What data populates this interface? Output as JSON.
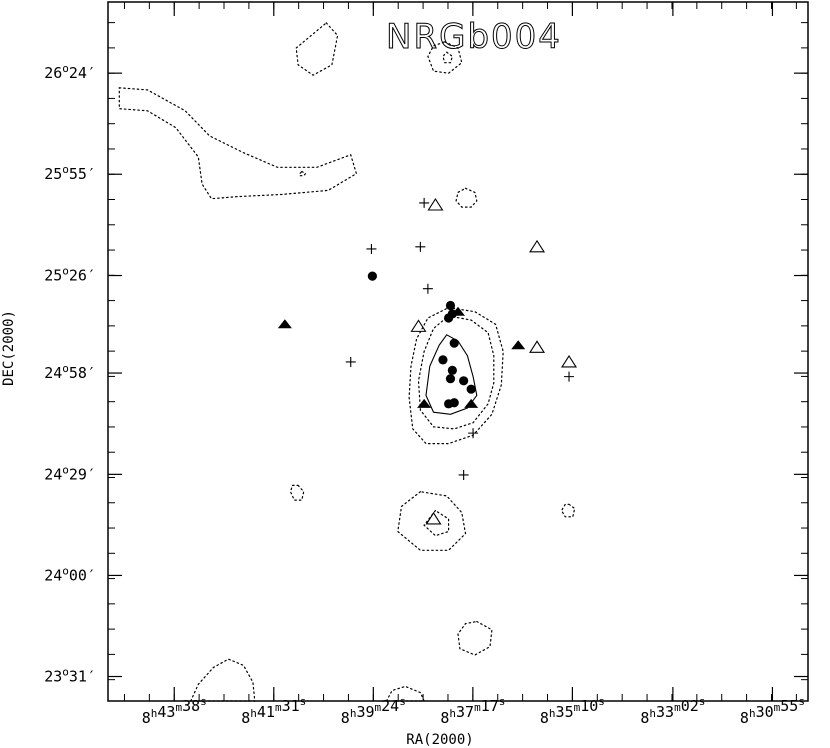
{
  "chart_data": {
    "type": "scatter",
    "title": "NRGb004",
    "xlabel": "RA(2000)",
    "ylabel": "DEC(2000)",
    "x_tick_labels": [
      {
        "hr": "8",
        "min": "43",
        "sec": "38"
      },
      {
        "hr": "8",
        "min": "41",
        "sec": "31"
      },
      {
        "hr": "8",
        "min": "39",
        "sec": "24"
      },
      {
        "hr": "8",
        "min": "37",
        "sec": "17"
      },
      {
        "hr": "8",
        "min": "35",
        "sec": "10"
      },
      {
        "hr": "8",
        "min": "33",
        "sec": "02"
      },
      {
        "hr": "8",
        "min": "30",
        "sec": "55"
      }
    ],
    "x_ticks_deg": [
      130.908,
      130.379,
      129.85,
      129.321,
      128.792,
      128.258,
      127.729
    ],
    "y_tick_labels": [
      {
        "deg": "26",
        "min": "24"
      },
      {
        "deg": "25",
        "min": "55"
      },
      {
        "deg": "25",
        "min": "26"
      },
      {
        "deg": "24",
        "min": "58"
      },
      {
        "deg": "24",
        "min": "29"
      },
      {
        "deg": "24",
        "min": "00"
      },
      {
        "deg": "23",
        "min": "31"
      }
    ],
    "y_ticks_deg": [
      26.4,
      25.917,
      25.433,
      24.967,
      24.483,
      24.0,
      23.517
    ],
    "xlim": [
      131.26,
      127.54
    ],
    "ylim": [
      23.4,
      26.74
    ],
    "grid": false,
    "series": [
      {
        "marker": "filled-circle",
        "color": "#000000",
        "points": [
          [
            129.855,
            25.43
          ],
          [
            129.44,
            25.29
          ],
          [
            129.43,
            25.25
          ],
          [
            129.45,
            25.23
          ],
          [
            129.42,
            25.11
          ],
          [
            129.48,
            25.03
          ],
          [
            129.43,
            24.98
          ],
          [
            129.44,
            24.94
          ],
          [
            129.37,
            24.93
          ],
          [
            129.33,
            24.89
          ],
          [
            129.42,
            24.825
          ],
          [
            129.45,
            24.82
          ]
        ]
      },
      {
        "marker": "filled-triangle",
        "color": "#000000",
        "points": [
          [
            130.32,
            25.2
          ],
          [
            129.58,
            24.82
          ],
          [
            129.33,
            24.82
          ],
          [
            129.08,
            25.1
          ],
          [
            129.4,
            25.26
          ]
        ]
      },
      {
        "marker": "open-triangle",
        "color": "#000000",
        "points": [
          [
            129.52,
            25.77
          ],
          [
            128.98,
            25.57
          ],
          [
            129.61,
            25.19
          ],
          [
            128.98,
            25.09
          ],
          [
            128.81,
            25.02
          ],
          [
            129.53,
            24.27
          ]
        ]
      },
      {
        "marker": "plus",
        "color": "#000000",
        "points": [
          [
            129.58,
            25.78
          ],
          [
            129.86,
            25.56
          ],
          [
            129.6,
            25.57
          ],
          [
            129.56,
            25.37
          ],
          [
            129.97,
            25.02
          ],
          [
            128.81,
            24.95
          ],
          [
            129.32,
            24.68
          ],
          [
            129.37,
            24.48
          ]
        ]
      }
    ],
    "contours": [
      {
        "style": "solid",
        "points": [
          [
            129.46,
            25.15
          ],
          [
            129.4,
            25.12
          ],
          [
            129.35,
            25.05
          ],
          [
            129.32,
            24.95
          ],
          [
            129.3,
            24.86
          ],
          [
            129.35,
            24.8
          ],
          [
            129.44,
            24.77
          ],
          [
            129.53,
            24.78
          ],
          [
            129.57,
            24.86
          ],
          [
            129.55,
            25.0
          ],
          [
            129.5,
            25.1
          ]
        ]
      },
      {
        "style": "dotted",
        "points": [
          [
            129.45,
            25.24
          ],
          [
            129.33,
            25.22
          ],
          [
            129.24,
            25.16
          ],
          [
            129.21,
            25.05
          ],
          [
            129.21,
            24.92
          ],
          [
            129.24,
            24.82
          ],
          [
            129.32,
            24.73
          ],
          [
            129.42,
            24.7
          ],
          [
            129.53,
            24.71
          ],
          [
            129.6,
            24.79
          ],
          [
            129.61,
            24.93
          ],
          [
            129.58,
            25.07
          ],
          [
            129.53,
            25.18
          ]
        ]
      },
      {
        "style": "dotted",
        "points": [
          [
            129.45,
            25.28
          ],
          [
            129.31,
            25.26
          ],
          [
            129.2,
            25.2
          ],
          [
            129.16,
            25.07
          ],
          [
            129.17,
            24.91
          ],
          [
            129.22,
            24.77
          ],
          [
            129.32,
            24.67
          ],
          [
            129.45,
            24.63
          ],
          [
            129.57,
            24.63
          ],
          [
            129.64,
            24.7
          ],
          [
            129.66,
            24.85
          ],
          [
            129.65,
            25.0
          ],
          [
            129.62,
            25.13
          ],
          [
            129.56,
            25.23
          ]
        ]
      },
      {
        "style": "dotted",
        "points": [
          [
            131.2,
            26.33
          ],
          [
            131.05,
            26.32
          ],
          [
            130.85,
            26.22
          ],
          [
            130.72,
            26.1
          ],
          [
            130.54,
            26.02
          ],
          [
            130.36,
            25.95
          ],
          [
            130.15,
            25.95
          ],
          [
            129.97,
            26.01
          ],
          [
            129.94,
            25.92
          ],
          [
            130.09,
            25.84
          ],
          [
            130.34,
            25.82
          ],
          [
            130.57,
            25.81
          ],
          [
            130.71,
            25.8
          ],
          [
            130.76,
            25.87
          ],
          [
            130.78,
            26.0
          ],
          [
            130.9,
            26.14
          ],
          [
            131.05,
            26.22
          ],
          [
            131.2,
            26.23
          ]
        ]
      },
      {
        "style": "dotted",
        "points": [
          [
            130.1,
            26.64
          ],
          [
            130.04,
            26.58
          ],
          [
            130.07,
            26.44
          ],
          [
            130.17,
            26.39
          ],
          [
            130.25,
            26.44
          ],
          [
            130.26,
            26.52
          ]
        ]
      },
      {
        "style": "dotted",
        "points": [
          [
            129.47,
            26.55
          ],
          [
            129.4,
            26.52
          ],
          [
            129.38,
            26.45
          ],
          [
            129.45,
            26.4
          ],
          [
            129.53,
            26.41
          ],
          [
            129.56,
            26.48
          ],
          [
            129.53,
            26.53
          ]
        ]
      },
      {
        "style": "dotted",
        "points": [
          [
            129.46,
            26.5
          ],
          [
            129.43,
            26.48
          ],
          [
            129.44,
            26.45
          ],
          [
            129.47,
            26.45
          ],
          [
            129.48,
            26.48
          ]
        ]
      },
      {
        "style": "dotted",
        "points": [
          [
            129.36,
            25.85
          ],
          [
            129.31,
            25.83
          ],
          [
            129.3,
            25.79
          ],
          [
            129.33,
            25.76
          ],
          [
            129.38,
            25.76
          ],
          [
            129.41,
            25.79
          ],
          [
            129.4,
            25.83
          ]
        ]
      },
      {
        "style": "dotted",
        "points": [
          [
            130.23,
            25.93
          ],
          [
            130.21,
            25.92
          ],
          [
            130.22,
            25.91
          ],
          [
            130.24,
            25.91
          ],
          [
            130.24,
            25.92
          ]
        ]
      },
      {
        "style": "dotted",
        "points": [
          [
            130.25,
            24.43
          ],
          [
            130.22,
            24.4
          ],
          [
            130.23,
            24.36
          ],
          [
            130.27,
            24.36
          ],
          [
            130.29,
            24.4
          ],
          [
            130.28,
            24.43
          ]
        ]
      },
      {
        "style": "dotted",
        "points": [
          [
            129.6,
            24.4
          ],
          [
            129.7,
            24.33
          ],
          [
            129.72,
            24.21
          ],
          [
            129.6,
            24.12
          ],
          [
            129.45,
            24.12
          ],
          [
            129.36,
            24.2
          ],
          [
            129.38,
            24.3
          ],
          [
            129.46,
            24.38
          ]
        ]
      },
      {
        "style": "dotted",
        "points": [
          [
            129.52,
            24.31
          ],
          [
            129.58,
            24.24
          ],
          [
            129.52,
            24.19
          ],
          [
            129.45,
            24.21
          ],
          [
            129.45,
            24.27
          ]
        ]
      },
      {
        "style": "dotted",
        "points": [
          [
            128.81,
            24.34
          ],
          [
            128.78,
            24.32
          ],
          [
            128.79,
            24.28
          ],
          [
            128.83,
            24.28
          ],
          [
            128.85,
            24.31
          ],
          [
            128.83,
            24.34
          ]
        ]
      },
      {
        "style": "dotted",
        "points": [
          [
            129.3,
            23.78
          ],
          [
            129.22,
            23.74
          ],
          [
            129.23,
            23.66
          ],
          [
            129.31,
            23.62
          ],
          [
            129.39,
            23.65
          ],
          [
            129.4,
            23.72
          ],
          [
            129.36,
            23.77
          ]
        ]
      },
      {
        "style": "dotted",
        "points": [
          [
            130.82,
            23.4
          ],
          [
            130.78,
            23.48
          ],
          [
            130.7,
            23.56
          ],
          [
            130.62,
            23.6
          ],
          [
            130.54,
            23.57
          ],
          [
            130.49,
            23.49
          ],
          [
            130.48,
            23.4
          ]
        ]
      },
      {
        "style": "dotted",
        "points": [
          [
            129.78,
            23.4
          ],
          [
            129.75,
            23.45
          ],
          [
            129.68,
            23.47
          ],
          [
            129.6,
            23.44
          ],
          [
            129.58,
            23.4
          ]
        ]
      }
    ]
  }
}
